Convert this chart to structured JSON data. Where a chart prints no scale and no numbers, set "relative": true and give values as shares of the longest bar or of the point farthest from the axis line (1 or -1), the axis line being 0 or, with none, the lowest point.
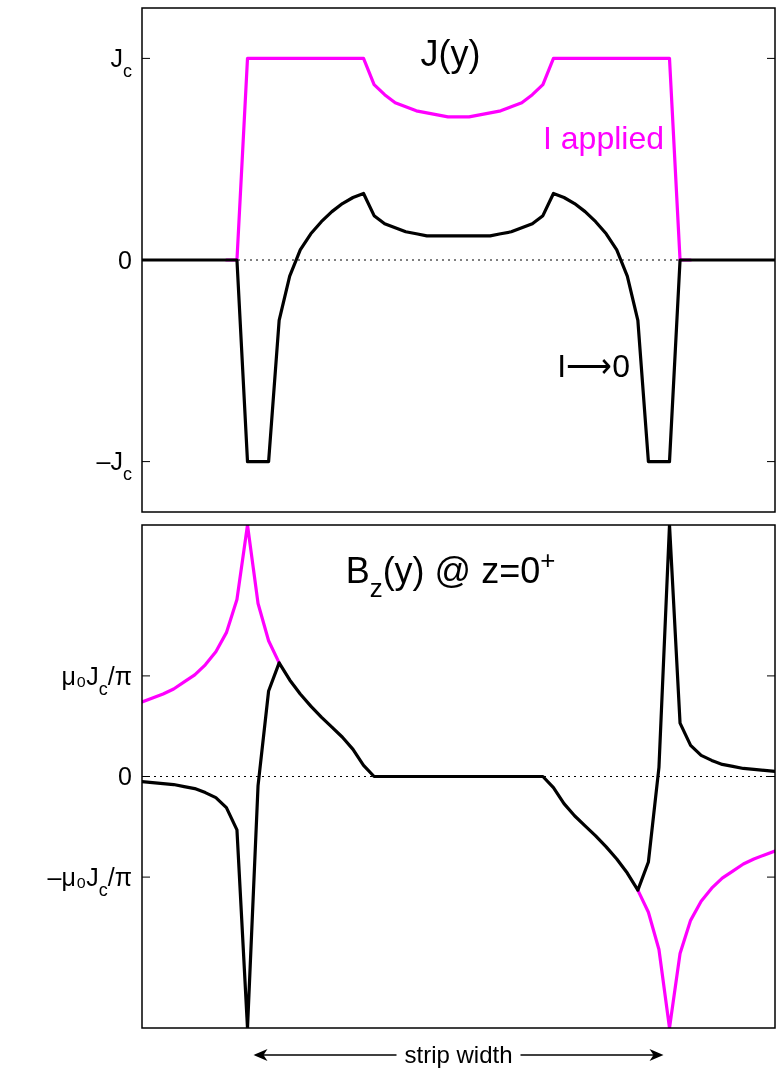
{
  "chart_data": [
    {
      "type": "line",
      "title": "J(y)",
      "relative": true,
      "categories": [
        null,
        null,
        null,
        null,
        null,
        null,
        null,
        null,
        null,
        null,
        null,
        null,
        null,
        null,
        null,
        null,
        null,
        null,
        null,
        null,
        null,
        null,
        null,
        null,
        null,
        null,
        null,
        null,
        null,
        null,
        null,
        null,
        null,
        null,
        null,
        null,
        null,
        null,
        null,
        null,
        null,
        null,
        null,
        null,
        null,
        null,
        null,
        null,
        null,
        null,
        null,
        null,
        null,
        null,
        null,
        null,
        null,
        null,
        null,
        null,
        null
      ],
      "ref_lines": [
        {
          "axis": "y",
          "value": 0,
          "line_style": "dotted"
        }
      ],
      "annotations": [
        "J$_{c}$",
        "0",
        "–J$_{c}$"
      ],
      "series": [
        {
          "name": "I applied",
          "color": "#ff00ff",
          "values": [
            null,
            null,
            null,
            null,
            null,
            null,
            null,
            null,
            0,
            0,
            1,
            1,
            1,
            1,
            1,
            1,
            1,
            1,
            1,
            1,
            1,
            1,
            0.87,
            0.82,
            0.78,
            0.76,
            0.74,
            0.73,
            0.72,
            0.71,
            0.71,
            0.71,
            0.72,
            0.73,
            0.74,
            0.76,
            0.78,
            0.82,
            0.87,
            1,
            1,
            1,
            1,
            1,
            1,
            1,
            1,
            1,
            1,
            1,
            1,
            0,
            0,
            null,
            null,
            null,
            null,
            null,
            null,
            null,
            null
          ]
        },
        {
          "name": "I⟶0",
          "color": "#000000",
          "values": [
            0,
            0,
            0,
            0,
            0,
            0,
            0,
            0,
            0,
            0,
            -1,
            -1,
            -1,
            -0.3,
            -0.08,
            0.05,
            0.13,
            0.19,
            0.24,
            0.28,
            0.31,
            0.33,
            0.22,
            0.18,
            0.16,
            0.14,
            0.13,
            0.12,
            0.12,
            0.12,
            0.12,
            0.12,
            0.12,
            0.12,
            0.13,
            0.14,
            0.16,
            0.18,
            0.22,
            0.33,
            0.31,
            0.28,
            0.24,
            0.19,
            0.13,
            0.05,
            -0.08,
            -0.3,
            -1,
            -1,
            -1,
            0,
            0,
            0,
            0,
            0,
            0,
            0,
            0,
            0,
            0
          ]
        }
      ]
    },
    {
      "type": "line",
      "title": "B$_{z}$(y) @ z=0$^{+}$",
      "relative": true,
      "categories": [
        null,
        null,
        null,
        null,
        null,
        null,
        null,
        null,
        null,
        null,
        null,
        null,
        null,
        null,
        null,
        null,
        null,
        null,
        null,
        null,
        null,
        null,
        null,
        null,
        null,
        null,
        null,
        null,
        null,
        null,
        null,
        null,
        null,
        null,
        null,
        null,
        null,
        null,
        null,
        null,
        null,
        null,
        null,
        null,
        null,
        null,
        null,
        null,
        null,
        null,
        null,
        null,
        null,
        null,
        null,
        null,
        null,
        null,
        null,
        null,
        null
      ],
      "ref_lines": [
        {
          "axis": "y",
          "value": 0,
          "line_style": "dotted"
        }
      ],
      "annotations": [
        "μ₀J$_{c}$/π",
        "0",
        "–μ₀J$_{c}$/π",
        "strip width"
      ],
      "series": [
        {
          "color": "#ff00ff",
          "values": [
            0.296,
            0.312,
            0.328,
            0.348,
            0.376,
            0.404,
            0.444,
            0.496,
            0.572,
            0.704,
            1,
            0.688,
            0.54,
            0.452,
            null,
            null,
            null,
            null,
            null,
            null,
            null,
            null,
            null,
            null,
            null,
            null,
            null,
            null,
            null,
            null,
            null,
            null,
            null,
            null,
            null,
            null,
            null,
            null,
            null,
            null,
            null,
            null,
            null,
            null,
            null,
            null,
            null,
            -0.452,
            -0.54,
            -0.688,
            -1,
            -0.704,
            -0.572,
            -0.496,
            -0.444,
            -0.404,
            -0.376,
            -0.348,
            -0.328,
            -0.312,
            -0.296
          ]
        },
        {
          "color": "#000000",
          "values": [
            -0.02,
            -0.024,
            -0.028,
            -0.032,
            -0.04,
            -0.048,
            -0.064,
            -0.084,
            -0.124,
            -0.212,
            -1,
            -0.036,
            0.34,
            0.452,
            0.384,
            0.328,
            0.28,
            0.236,
            0.196,
            0.156,
            0.108,
            0.044,
            0,
            0,
            0,
            0,
            0,
            0,
            0,
            0,
            0,
            0,
            0,
            0,
            0,
            0,
            0,
            0,
            0,
            -0.044,
            -0.108,
            -0.156,
            -0.196,
            -0.236,
            -0.28,
            -0.328,
            -0.384,
            -0.452,
            -0.34,
            0.036,
            1,
            0.212,
            0.124,
            0.084,
            0.064,
            0.048,
            0.04,
            0.032,
            0.028,
            0.024,
            0.02
          ]
        }
      ]
    }
  ]
}
